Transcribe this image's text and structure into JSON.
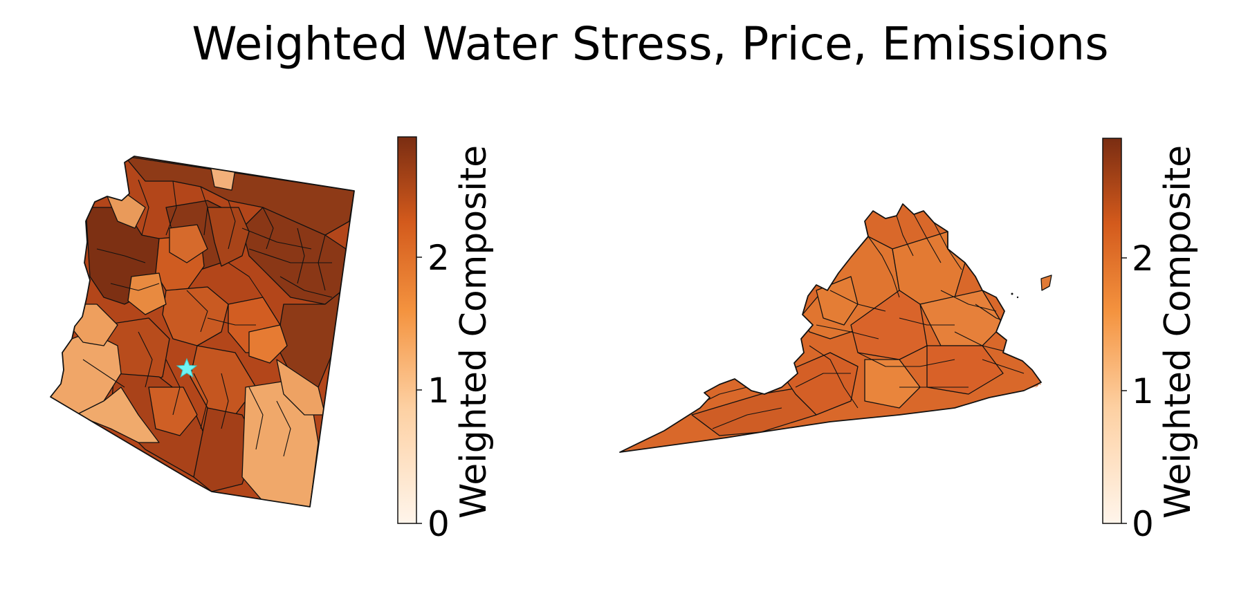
{
  "title": "Weighted Water Stress, Price, Emissions",
  "colors": {
    "cmap_stops": [
      "#fff5eb",
      "#fdd0a2",
      "#fd8d3c",
      "#d94801",
      "#7f2704"
    ],
    "marker": "#6ff3f3",
    "edge": "#111111"
  },
  "panels": [
    {
      "region_name": "Arizona",
      "colorbar": {
        "label": "Weighted Composite",
        "vmin": 0,
        "vmax": 2.9,
        "ticks": [
          "0",
          "1",
          "2"
        ]
      },
      "marker": {
        "icon": "star-icon"
      }
    },
    {
      "region_name": "Virginia",
      "colorbar": {
        "label": "Weighted Composite",
        "vmin": 0,
        "vmax": 2.9,
        "ticks": [
          "0",
          "1",
          "2"
        ]
      }
    }
  ]
}
